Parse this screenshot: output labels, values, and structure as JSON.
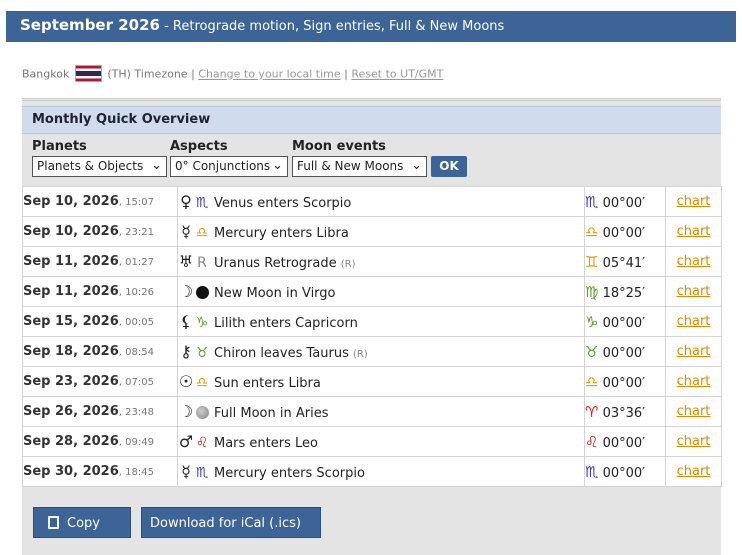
{
  "header": {
    "month_title": "September 2026",
    "subtitle": " - Retrograde motion, Sign entries, Full & New Moons"
  },
  "timezone": {
    "city": "Bangkok",
    "code": "(TH) Timezone",
    "separator": "|",
    "change_link": "Change to your local time",
    "reset_link": "Reset to UT/GMT"
  },
  "overview": {
    "title": "Monthly Quick Overview",
    "filters": {
      "planets_label": "Planets",
      "planets_value": "Planets & Objects",
      "aspects_label": "Aspects",
      "aspects_value": "0° Conjunctions",
      "moon_label": "Moon events",
      "moon_value": "Full & New Moons",
      "ok_label": "OK"
    }
  },
  "colors": {
    "header_bg": "#3c6496",
    "link_orange": "#e08a00",
    "scorpio": "#3a3ab8",
    "libra": "#e39b00",
    "gemini": "#e39b00",
    "virgo": "#5aa02c",
    "capricorn": "#5aa02c",
    "taurus": "#5aa02c",
    "aries": "#dd1111",
    "leo": "#dd1111"
  },
  "events": [
    {
      "date": "Sep 10, 2026",
      "time": ", 15:07",
      "glyph1": "♀",
      "glyph2": "♏",
      "glyph2_color": "#3a3ab8",
      "text": "Venus enters Scorpio",
      "note": "",
      "pos_sign": "♏",
      "pos_color": "#3a3ab8",
      "pos_value": "00°00′",
      "link": "chart"
    },
    {
      "date": "Sep 10, 2026",
      "time": ", 23:21",
      "glyph1": "☿",
      "glyph2": "♎",
      "glyph2_color": "#e39b00",
      "text": "Mercury enters Libra",
      "note": "",
      "pos_sign": "♎",
      "pos_color": "#e39b00",
      "pos_value": "00°00′",
      "link": "chart"
    },
    {
      "date": "Sep 11, 2026",
      "time": ", 01:27",
      "glyph1": "♅",
      "glyph2": "R",
      "glyph2_color": "#888888",
      "text": "Uranus Retrograde",
      "note": "(R)",
      "pos_sign": "♊",
      "pos_color": "#e39b00",
      "pos_value": "05°41′",
      "link": "chart"
    },
    {
      "date": "Sep 11, 2026",
      "time": ", 10:26",
      "glyph1": "☽",
      "glyph2": "new-moon-icon",
      "glyph2_color": "#111111",
      "text": "New Moon in Virgo",
      "note": "",
      "pos_sign": "♍",
      "pos_color": "#5aa02c",
      "pos_value": "18°25′",
      "link": "chart"
    },
    {
      "date": "Sep 15, 2026",
      "time": ", 00:05",
      "glyph1": "⚸",
      "glyph2": "♑",
      "glyph2_color": "#5aa02c",
      "text": "Lilith enters Capricorn",
      "note": "",
      "pos_sign": "♑",
      "pos_color": "#5aa02c",
      "pos_value": "00°00′",
      "link": "chart"
    },
    {
      "date": "Sep 18, 2026",
      "time": ", 08:54",
      "glyph1": "⚷",
      "glyph2": "♉",
      "glyph2_color": "#5aa02c",
      "text": "Chiron leaves Taurus",
      "note": "(R)",
      "pos_sign": "♉",
      "pos_color": "#5aa02c",
      "pos_value": "00°00′",
      "link": "chart"
    },
    {
      "date": "Sep 23, 2026",
      "time": ", 07:05",
      "glyph1": "☉",
      "glyph2": "♎",
      "glyph2_color": "#e39b00",
      "text": "Sun enters Libra",
      "note": "",
      "pos_sign": "♎",
      "pos_color": "#e39b00",
      "pos_value": "00°00′",
      "link": "chart"
    },
    {
      "date": "Sep 26, 2026",
      "time": ", 23:48",
      "glyph1": "☽",
      "glyph2": "full-moon-icon",
      "glyph2_color": "#999999",
      "text": "Full Moon in Aries",
      "note": "",
      "pos_sign": "♈",
      "pos_color": "#dd1111",
      "pos_value": "03°36′",
      "link": "chart"
    },
    {
      "date": "Sep 28, 2026",
      "time": ", 09:49",
      "glyph1": "♂",
      "glyph2": "♌",
      "glyph2_color": "#dd1111",
      "text": "Mars enters Leo",
      "note": "",
      "pos_sign": "♌",
      "pos_color": "#dd1111",
      "pos_value": "00°00′",
      "link": "chart"
    },
    {
      "date": "Sep 30, 2026",
      "time": ", 18:45",
      "glyph1": "☿",
      "glyph2": "♏",
      "glyph2_color": "#3a3ab8",
      "text": "Mercury enters Scorpio",
      "note": "",
      "pos_sign": "♏",
      "pos_color": "#3a3ab8",
      "pos_value": "00°00′",
      "link": "chart"
    }
  ],
  "buttons": {
    "copy_label": "Copy",
    "ical_label": "Download for iCal (.ics)"
  }
}
